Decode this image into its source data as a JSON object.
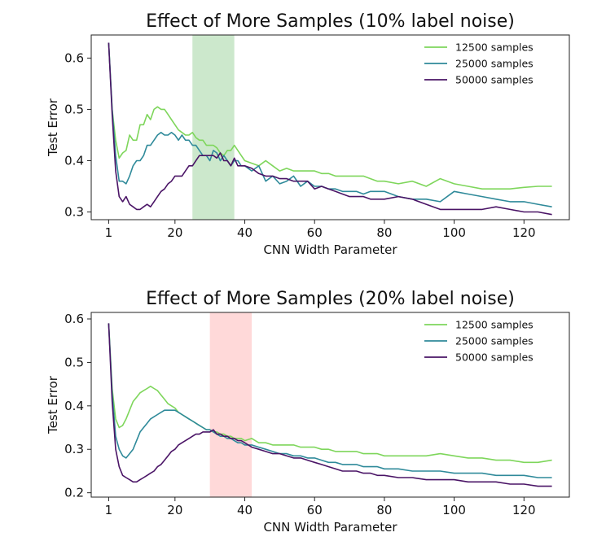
{
  "chart_data": [
    {
      "type": "line",
      "title": "Effect of More Samples (10% label noise)",
      "xlabel": "CNN Width Parameter",
      "ylabel": "Test Error",
      "xlim": [
        -4,
        133
      ],
      "ylim": [
        0.285,
        0.645
      ],
      "xticks": [
        1,
        20,
        40,
        60,
        80,
        100,
        120
      ],
      "yticks": [
        0.3,
        0.4,
        0.5,
        0.6
      ],
      "grid": false,
      "legend": "top-right",
      "shaded_region": {
        "x": [
          25,
          37
        ],
        "color": "#8fcc8f"
      },
      "series": [
        {
          "name": "12500 samples",
          "color": "#7ed65b",
          "x": [
            1,
            2,
            3,
            4,
            5,
            6,
            7,
            8,
            9,
            10,
            11,
            12,
            13,
            14,
            15,
            16,
            17,
            18,
            19,
            20,
            21,
            22,
            23,
            24,
            25,
            26,
            27,
            28,
            29,
            30,
            31,
            32,
            33,
            34,
            35,
            36,
            37,
            38,
            39,
            40,
            42,
            44,
            46,
            48,
            50,
            52,
            54,
            56,
            58,
            60,
            62,
            64,
            66,
            68,
            70,
            72,
            74,
            76,
            78,
            80,
            84,
            88,
            92,
            96,
            100,
            104,
            108,
            112,
            116,
            120,
            124,
            128
          ],
          "values": [
            0.63,
            0.5,
            0.44,
            0.405,
            0.415,
            0.42,
            0.45,
            0.44,
            0.44,
            0.47,
            0.47,
            0.49,
            0.48,
            0.5,
            0.505,
            0.5,
            0.5,
            0.49,
            0.48,
            0.47,
            0.46,
            0.455,
            0.45,
            0.45,
            0.455,
            0.445,
            0.44,
            0.44,
            0.43,
            0.43,
            0.43,
            0.425,
            0.415,
            0.41,
            0.42,
            0.42,
            0.43,
            0.42,
            0.41,
            0.4,
            0.395,
            0.39,
            0.4,
            0.39,
            0.38,
            0.385,
            0.38,
            0.38,
            0.38,
            0.38,
            0.375,
            0.375,
            0.37,
            0.37,
            0.37,
            0.37,
            0.37,
            0.365,
            0.36,
            0.36,
            0.355,
            0.36,
            0.35,
            0.365,
            0.355,
            0.35,
            0.345,
            0.345,
            0.345,
            0.348,
            0.35,
            0.35
          ]
        },
        {
          "name": "25000 samples",
          "color": "#2f8a9a",
          "x": [
            1,
            2,
            3,
            4,
            5,
            6,
            7,
            8,
            9,
            10,
            11,
            12,
            13,
            14,
            15,
            16,
            17,
            18,
            19,
            20,
            21,
            22,
            23,
            24,
            25,
            26,
            27,
            28,
            29,
            30,
            31,
            32,
            33,
            34,
            35,
            36,
            37,
            38,
            39,
            40,
            42,
            44,
            46,
            48,
            50,
            52,
            54,
            56,
            58,
            60,
            62,
            64,
            66,
            68,
            70,
            72,
            74,
            76,
            78,
            80,
            84,
            88,
            92,
            96,
            100,
            104,
            108,
            112,
            116,
            120,
            124,
            128
          ],
          "values": [
            0.63,
            0.5,
            0.41,
            0.36,
            0.36,
            0.355,
            0.37,
            0.39,
            0.4,
            0.4,
            0.41,
            0.43,
            0.43,
            0.44,
            0.45,
            0.455,
            0.45,
            0.45,
            0.455,
            0.45,
            0.44,
            0.45,
            0.44,
            0.44,
            0.43,
            0.43,
            0.42,
            0.41,
            0.41,
            0.4,
            0.42,
            0.415,
            0.4,
            0.41,
            0.4,
            0.39,
            0.4,
            0.4,
            0.39,
            0.39,
            0.38,
            0.39,
            0.36,
            0.37,
            0.355,
            0.36,
            0.37,
            0.35,
            0.36,
            0.35,
            0.35,
            0.345,
            0.345,
            0.34,
            0.34,
            0.34,
            0.335,
            0.34,
            0.34,
            0.34,
            0.33,
            0.325,
            0.325,
            0.32,
            0.34,
            0.335,
            0.33,
            0.325,
            0.32,
            0.32,
            0.315,
            0.31
          ]
        },
        {
          "name": "50000 samples",
          "color": "#4a1466",
          "x": [
            1,
            2,
            3,
            4,
            5,
            6,
            7,
            8,
            9,
            10,
            11,
            12,
            13,
            14,
            15,
            16,
            17,
            18,
            19,
            20,
            21,
            22,
            23,
            24,
            25,
            26,
            27,
            28,
            29,
            30,
            31,
            32,
            33,
            34,
            35,
            36,
            37,
            38,
            39,
            40,
            42,
            44,
            46,
            48,
            50,
            52,
            54,
            56,
            58,
            60,
            62,
            64,
            66,
            68,
            70,
            72,
            74,
            76,
            78,
            80,
            84,
            88,
            92,
            96,
            100,
            104,
            108,
            112,
            116,
            120,
            124,
            128
          ],
          "values": [
            0.63,
            0.49,
            0.38,
            0.33,
            0.32,
            0.33,
            0.315,
            0.31,
            0.305,
            0.305,
            0.31,
            0.315,
            0.31,
            0.32,
            0.33,
            0.34,
            0.345,
            0.355,
            0.36,
            0.37,
            0.37,
            0.37,
            0.38,
            0.39,
            0.39,
            0.4,
            0.41,
            0.41,
            0.41,
            0.41,
            0.41,
            0.405,
            0.415,
            0.4,
            0.4,
            0.39,
            0.405,
            0.39,
            0.39,
            0.39,
            0.385,
            0.375,
            0.37,
            0.37,
            0.365,
            0.365,
            0.36,
            0.36,
            0.36,
            0.345,
            0.35,
            0.345,
            0.34,
            0.335,
            0.33,
            0.33,
            0.33,
            0.325,
            0.325,
            0.325,
            0.33,
            0.325,
            0.315,
            0.305,
            0.305,
            0.305,
            0.305,
            0.31,
            0.305,
            0.3,
            0.3,
            0.295
          ]
        }
      ]
    },
    {
      "type": "line",
      "title": "Effect of More Samples (20% label noise)",
      "xlabel": "CNN Width Parameter",
      "ylabel": "Test Error",
      "xlim": [
        -4,
        133
      ],
      "ylim": [
        0.19,
        0.615
      ],
      "xticks": [
        1,
        20,
        40,
        60,
        80,
        100,
        120
      ],
      "yticks": [
        0.2,
        0.3,
        0.4,
        0.5,
        0.6
      ],
      "grid": false,
      "legend": "top-right",
      "shaded_region": {
        "x": [
          30,
          42
        ],
        "color": "#ffaaaa"
      },
      "series": [
        {
          "name": "12500 samples",
          "color": "#7ed65b",
          "x": [
            1,
            2,
            3,
            4,
            5,
            6,
            7,
            8,
            9,
            10,
            11,
            12,
            13,
            14,
            15,
            16,
            17,
            18,
            19,
            20,
            21,
            22,
            23,
            24,
            25,
            26,
            27,
            28,
            29,
            30,
            31,
            32,
            33,
            34,
            35,
            36,
            37,
            38,
            39,
            40,
            42,
            44,
            46,
            48,
            50,
            52,
            54,
            56,
            58,
            60,
            62,
            64,
            66,
            68,
            70,
            72,
            74,
            76,
            78,
            80,
            84,
            88,
            92,
            96,
            100,
            104,
            108,
            112,
            116,
            120,
            124,
            128
          ],
          "values": [
            0.59,
            0.44,
            0.37,
            0.35,
            0.355,
            0.37,
            0.39,
            0.41,
            0.42,
            0.43,
            0.435,
            0.44,
            0.445,
            0.44,
            0.435,
            0.425,
            0.415,
            0.405,
            0.4,
            0.395,
            0.385,
            0.38,
            0.375,
            0.37,
            0.365,
            0.36,
            0.355,
            0.35,
            0.345,
            0.345,
            0.34,
            0.34,
            0.335,
            0.335,
            0.33,
            0.33,
            0.325,
            0.325,
            0.325,
            0.32,
            0.325,
            0.315,
            0.315,
            0.31,
            0.31,
            0.31,
            0.31,
            0.305,
            0.305,
            0.305,
            0.3,
            0.3,
            0.295,
            0.295,
            0.295,
            0.295,
            0.29,
            0.29,
            0.29,
            0.285,
            0.285,
            0.285,
            0.285,
            0.29,
            0.285,
            0.28,
            0.28,
            0.275,
            0.275,
            0.27,
            0.27,
            0.275
          ]
        },
        {
          "name": "25000 samples",
          "color": "#2f8a9a",
          "x": [
            1,
            2,
            3,
            4,
            5,
            6,
            7,
            8,
            9,
            10,
            11,
            12,
            13,
            14,
            15,
            16,
            17,
            18,
            19,
            20,
            21,
            22,
            23,
            24,
            25,
            26,
            27,
            28,
            29,
            30,
            31,
            32,
            33,
            34,
            35,
            36,
            37,
            38,
            39,
            40,
            42,
            44,
            46,
            48,
            50,
            52,
            54,
            56,
            58,
            60,
            62,
            64,
            66,
            68,
            70,
            72,
            74,
            76,
            78,
            80,
            84,
            88,
            92,
            96,
            100,
            104,
            108,
            112,
            116,
            120,
            124,
            128
          ],
          "values": [
            0.59,
            0.43,
            0.33,
            0.3,
            0.285,
            0.28,
            0.29,
            0.3,
            0.32,
            0.34,
            0.35,
            0.36,
            0.37,
            0.375,
            0.38,
            0.385,
            0.39,
            0.39,
            0.39,
            0.39,
            0.385,
            0.38,
            0.375,
            0.37,
            0.365,
            0.36,
            0.355,
            0.35,
            0.345,
            0.345,
            0.34,
            0.335,
            0.33,
            0.33,
            0.325,
            0.325,
            0.32,
            0.315,
            0.315,
            0.31,
            0.31,
            0.305,
            0.3,
            0.295,
            0.29,
            0.29,
            0.285,
            0.285,
            0.28,
            0.28,
            0.275,
            0.27,
            0.27,
            0.265,
            0.265,
            0.265,
            0.26,
            0.26,
            0.26,
            0.255,
            0.255,
            0.25,
            0.25,
            0.25,
            0.245,
            0.245,
            0.245,
            0.24,
            0.24,
            0.24,
            0.235,
            0.235
          ]
        },
        {
          "name": "50000 samples",
          "color": "#4a1466",
          "x": [
            1,
            2,
            3,
            4,
            5,
            6,
            7,
            8,
            9,
            10,
            11,
            12,
            13,
            14,
            15,
            16,
            17,
            18,
            19,
            20,
            21,
            22,
            23,
            24,
            25,
            26,
            27,
            28,
            29,
            30,
            31,
            32,
            33,
            34,
            35,
            36,
            37,
            38,
            39,
            40,
            42,
            44,
            46,
            48,
            50,
            52,
            54,
            56,
            58,
            60,
            62,
            64,
            66,
            68,
            70,
            72,
            74,
            76,
            78,
            80,
            84,
            88,
            92,
            96,
            100,
            104,
            108,
            112,
            116,
            120,
            124,
            128
          ],
          "values": [
            0.59,
            0.41,
            0.3,
            0.26,
            0.24,
            0.235,
            0.23,
            0.225,
            0.225,
            0.23,
            0.235,
            0.24,
            0.245,
            0.25,
            0.26,
            0.265,
            0.275,
            0.285,
            0.295,
            0.3,
            0.31,
            0.315,
            0.32,
            0.325,
            0.33,
            0.335,
            0.335,
            0.34,
            0.34,
            0.34,
            0.345,
            0.335,
            0.335,
            0.33,
            0.33,
            0.325,
            0.325,
            0.32,
            0.32,
            0.315,
            0.305,
            0.3,
            0.295,
            0.29,
            0.29,
            0.285,
            0.28,
            0.28,
            0.275,
            0.27,
            0.265,
            0.26,
            0.255,
            0.25,
            0.25,
            0.25,
            0.245,
            0.245,
            0.24,
            0.24,
            0.235,
            0.235,
            0.23,
            0.23,
            0.23,
            0.225,
            0.225,
            0.225,
            0.22,
            0.22,
            0.215,
            0.215
          ]
        }
      ]
    }
  ]
}
